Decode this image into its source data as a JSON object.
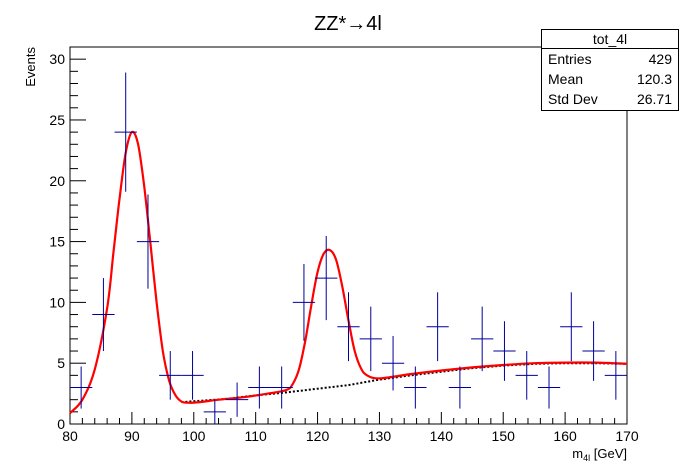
{
  "chart_data": {
    "type": "scatter",
    "title": "ZZ*→4l",
    "xlabel_main": "m",
    "xlabel_sub": "4l",
    "xlabel_unit": " [GeV]",
    "ylabel": "Events",
    "xlim": [
      80,
      170
    ],
    "ylim": [
      0,
      31
    ],
    "x_ticks": [
      80,
      90,
      100,
      110,
      120,
      130,
      140,
      150,
      160,
      170
    ],
    "y_ticks": [
      0,
      5,
      10,
      15,
      20,
      25,
      30
    ],
    "histogram": {
      "name": "tot_4l",
      "bin_width": 3.6,
      "x": [
        81.8,
        85.4,
        89.0,
        92.6,
        96.2,
        99.8,
        103.4,
        107.0,
        110.6,
        114.2,
        117.8,
        121.4,
        125.0,
        128.6,
        132.2,
        135.8,
        139.4,
        143.0,
        146.6,
        150.2,
        153.8,
        157.4,
        161.0,
        164.6,
        168.2
      ],
      "y": [
        3,
        9,
        24,
        15,
        4,
        4,
        1,
        2,
        3,
        3,
        10,
        12,
        8,
        7,
        5,
        3,
        8,
        3,
        7,
        6,
        4,
        3,
        8,
        6,
        4
      ],
      "err": [
        1.73,
        3.0,
        4.9,
        3.87,
        2.0,
        2.0,
        1.0,
        1.41,
        1.73,
        1.73,
        3.16,
        3.46,
        2.83,
        2.65,
        2.24,
        1.73,
        2.83,
        1.73,
        2.65,
        2.45,
        2.0,
        1.73,
        2.83,
        2.45,
        2.0
      ]
    },
    "fit_curve": {
      "color": "#ff0000",
      "points": [
        [
          80,
          0.9
        ],
        [
          82,
          2.0
        ],
        [
          84,
          4.5
        ],
        [
          86,
          9.5
        ],
        [
          87,
          14.0
        ],
        [
          88,
          18.5
        ],
        [
          89,
          22.3
        ],
        [
          90,
          24.0
        ],
        [
          91,
          23.0
        ],
        [
          92,
          19.5
        ],
        [
          93,
          14.8
        ],
        [
          94,
          10.0
        ],
        [
          95,
          6.0
        ],
        [
          96,
          3.6
        ],
        [
          97,
          2.4
        ],
        [
          98,
          1.85
        ],
        [
          99,
          1.75
        ],
        [
          101,
          1.8
        ],
        [
          104,
          2.0
        ],
        [
          108,
          2.2
        ],
        [
          112,
          2.5
        ],
        [
          115,
          2.8
        ],
        [
          116,
          3.3
        ],
        [
          117,
          4.5
        ],
        [
          118,
          6.8
        ],
        [
          119,
          9.8
        ],
        [
          120,
          12.5
        ],
        [
          121,
          14.0
        ],
        [
          122,
          14.3
        ],
        [
          123,
          13.5
        ],
        [
          124,
          11.3
        ],
        [
          125,
          8.5
        ],
        [
          126,
          6.0
        ],
        [
          127,
          4.6
        ],
        [
          128,
          4.0
        ],
        [
          130,
          3.75
        ],
        [
          135,
          4.1
        ],
        [
          140,
          4.4
        ],
        [
          145,
          4.65
        ],
        [
          150,
          4.85
        ],
        [
          155,
          5.0
        ],
        [
          160,
          5.05
        ],
        [
          165,
          5.05
        ],
        [
          170,
          4.95
        ]
      ]
    },
    "background_curve": {
      "color": "#000000",
      "points": [
        [
          98,
          1.8
        ],
        [
          105,
          2.05
        ],
        [
          110,
          2.35
        ],
        [
          115,
          2.6
        ],
        [
          120,
          2.9
        ],
        [
          125,
          3.2
        ],
        [
          130,
          3.65
        ],
        [
          135,
          4.0
        ],
        [
          140,
          4.3
        ],
        [
          145,
          4.6
        ],
        [
          150,
          4.8
        ],
        [
          155,
          4.95
        ],
        [
          160,
          5.0
        ],
        [
          165,
          5.0
        ],
        [
          170,
          4.95
        ]
      ]
    },
    "colors": {
      "data": "#000099",
      "fit": "#ff0000",
      "background": "#000000"
    }
  },
  "stats": {
    "name": "tot_4l",
    "rows": [
      {
        "label": "Entries",
        "value": "429"
      },
      {
        "label": "Mean",
        "value": "120.3"
      },
      {
        "label": "Std Dev",
        "value": "26.71"
      }
    ]
  }
}
